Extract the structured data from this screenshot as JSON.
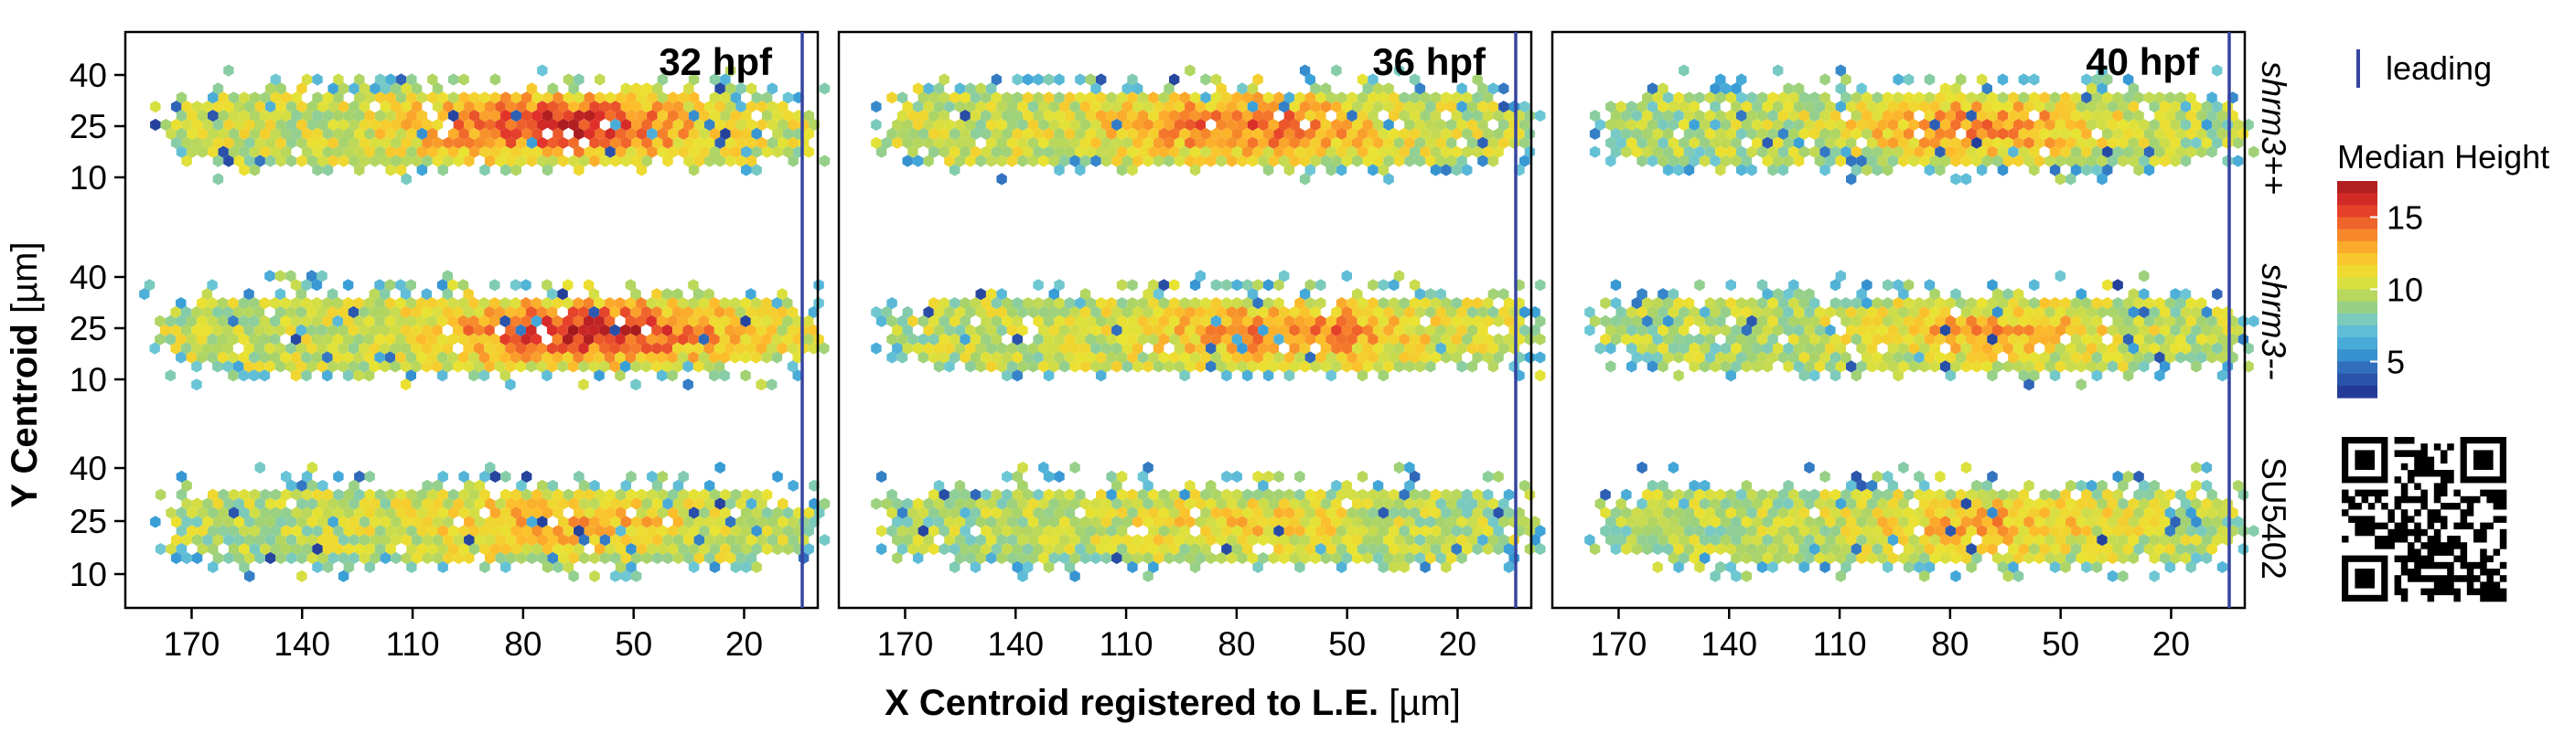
{
  "chart_data": {
    "type": "heatmap",
    "subtype": "hexbin",
    "xlabel_bold": "X Centroid registered to L.E.",
    "xlabel_unit": "[µm]",
    "ylabel_bold": "Y Centroid",
    "ylabel_unit": "[µm]",
    "x_reversed": true,
    "xlim": [
      188,
      0
    ],
    "x_ticks": [
      170,
      140,
      110,
      80,
      50,
      20
    ],
    "ylim": [
      5,
      45
    ],
    "y_ticks": [
      40,
      25,
      10
    ],
    "columns": [
      "32 hpf",
      "36 hpf",
      "40 hpf"
    ],
    "rows": [
      "shrm3++",
      "shrm3--",
      "SU5402"
    ],
    "leading_edge_x": 0,
    "legend": {
      "line_label": "leading",
      "line_color": "#3545a0",
      "colorbar_title": "Median Height",
      "colorbar_ticks": [
        15,
        10,
        5
      ],
      "colorbar_range": [
        2.5,
        17.5
      ],
      "colorscale": [
        "#1f2f8c",
        "#2e5fb4",
        "#3aa0d8",
        "#6cc7d6",
        "#a7d36b",
        "#e9e332",
        "#fdbd2b",
        "#f4752a",
        "#e0302a",
        "#a3191e"
      ]
    },
    "panels": [
      {
        "column": "32 hpf",
        "row": "shrm3++",
        "x_range": [
          177,
          0
        ],
        "y_range": [
          13,
          36
        ],
        "peak_x": 70,
        "peak_y": 25,
        "peak_value": 16.2,
        "base_value": 10
      },
      {
        "column": "36 hpf",
        "row": "shrm3++",
        "x_range": [
          175,
          0
        ],
        "y_range": [
          13,
          36
        ],
        "peak_x": 78,
        "peak_y": 25,
        "peak_value": 14.5,
        "base_value": 9.8
      },
      {
        "column": "40 hpf",
        "row": "shrm3++",
        "x_range": [
          175,
          0
        ],
        "y_range": [
          13,
          36
        ],
        "peak_x": 72,
        "peak_y": 25,
        "peak_value": 13.8,
        "base_value": 9.3
      },
      {
        "column": "32 hpf",
        "row": "shrm3--",
        "x_range": [
          180,
          0
        ],
        "y_range": [
          13,
          35
        ],
        "peak_x": 62,
        "peak_y": 24,
        "peak_value": 16.4,
        "base_value": 10
      },
      {
        "column": "36 hpf",
        "row": "shrm3--",
        "x_range": [
          175,
          0
        ],
        "y_range": [
          13,
          35
        ],
        "peak_x": 65,
        "peak_y": 24,
        "peak_value": 14.2,
        "base_value": 9.8
      },
      {
        "column": "40 hpf",
        "row": "shrm3--",
        "x_range": [
          175,
          0
        ],
        "y_range": [
          13,
          35
        ],
        "peak_x": 68,
        "peak_y": 24,
        "peak_value": 12.8,
        "base_value": 9.4
      },
      {
        "column": "32 hpf",
        "row": "SU5402",
        "x_range": [
          177,
          0
        ],
        "y_range": [
          13,
          35
        ],
        "peak_x": 70,
        "peak_y": 24,
        "peak_value": 12.9,
        "base_value": 9.6
      },
      {
        "column": "36 hpf",
        "row": "SU5402",
        "x_range": [
          175,
          0
        ],
        "y_range": [
          13,
          35
        ],
        "peak_x": 78,
        "peak_y": 24,
        "peak_value": 11.6,
        "base_value": 9.4
      },
      {
        "column": "40 hpf",
        "row": "SU5402",
        "x_range": [
          175,
          0
        ],
        "y_range": [
          13,
          35
        ],
        "peak_x": 70,
        "peak_y": 24,
        "peak_value": 12.6,
        "base_value": 9.4
      }
    ]
  }
}
